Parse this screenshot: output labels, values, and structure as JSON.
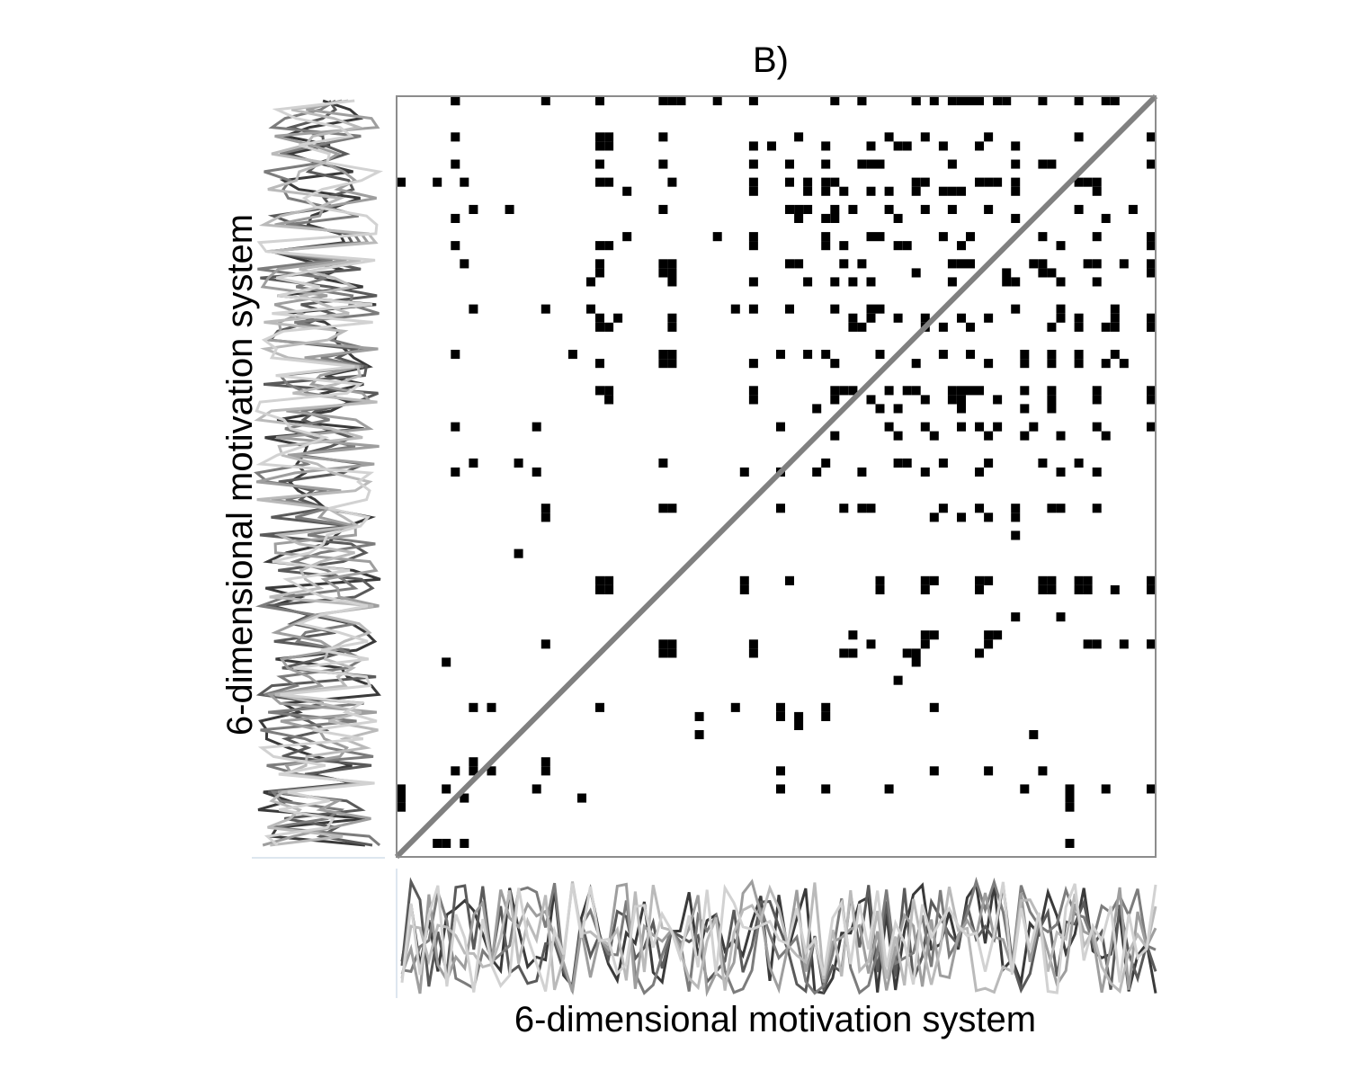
{
  "chart_data": {
    "type": "recurrence_plot",
    "title": "B)",
    "xlabel": "6-dimensional motivation system",
    "ylabel": "6-dimensional motivation system",
    "grid_size": 84,
    "diagonal": "line of identity",
    "recurrence_points": [
      [
        6,
        84
      ],
      [
        16,
        84
      ],
      [
        22,
        84
      ],
      [
        29,
        84
      ],
      [
        35,
        84
      ],
      [
        39,
        84
      ],
      [
        48,
        84
      ],
      [
        51,
        84
      ],
      [
        57,
        84
      ],
      [
        59,
        84
      ],
      [
        62,
        84
      ],
      [
        63,
        84
      ],
      [
        66,
        84
      ],
      [
        67,
        84
      ],
      [
        75,
        84
      ],
      [
        78,
        84
      ],
      [
        79,
        84
      ],
      [
        6,
        83
      ],
      [
        22,
        83
      ],
      [
        30,
        83
      ],
      [
        31,
        83
      ],
      [
        51,
        83
      ],
      [
        57,
        83
      ],
      [
        61,
        83
      ],
      [
        64,
        83
      ],
      [
        71,
        83
      ],
      [
        6,
        79
      ],
      [
        22,
        79
      ],
      [
        23,
        79
      ],
      [
        29,
        79
      ],
      [
        44,
        79
      ],
      [
        54,
        79
      ],
      [
        58,
        79
      ],
      [
        65,
        79
      ],
      [
        75,
        79
      ],
      [
        84,
        79
      ],
      [
        22,
        78
      ],
      [
        23,
        78
      ],
      [
        39,
        78
      ],
      [
        41,
        78
      ],
      [
        47,
        78
      ],
      [
        52,
        78
      ],
      [
        55,
        78
      ],
      [
        56,
        78
      ],
      [
        60,
        78
      ],
      [
        64,
        78
      ],
      [
        68,
        78
      ],
      [
        6,
        76
      ],
      [
        22,
        76
      ],
      [
        29,
        76
      ],
      [
        39,
        76
      ],
      [
        43,
        76
      ],
      [
        47,
        76
      ],
      [
        51,
        76
      ],
      [
        52,
        76
      ],
      [
        53,
        76
      ],
      [
        61,
        76
      ],
      [
        68,
        76
      ],
      [
        71,
        76
      ],
      [
        72,
        76
      ],
      [
        84,
        76
      ],
      [
        0,
        74
      ],
      [
        4,
        74
      ],
      [
        7,
        74
      ],
      [
        22,
        74
      ],
      [
        23,
        74
      ],
      [
        30,
        74
      ],
      [
        39,
        74
      ],
      [
        43,
        74
      ],
      [
        45,
        74
      ],
      [
        47,
        74
      ],
      [
        48,
        74
      ],
      [
        57,
        74
      ],
      [
        58,
        74
      ],
      [
        64,
        74
      ],
      [
        65,
        74
      ],
      [
        66,
        74
      ],
      [
        68,
        74
      ],
      [
        75,
        74
      ],
      [
        76,
        74
      ],
      [
        77,
        74
      ],
      [
        25,
        73
      ],
      [
        39,
        73
      ],
      [
        45,
        73
      ],
      [
        47,
        73
      ],
      [
        49,
        73
      ],
      [
        52,
        73
      ],
      [
        54,
        73
      ],
      [
        57,
        73
      ],
      [
        60,
        73
      ],
      [
        61,
        73
      ],
      [
        62,
        73
      ],
      [
        68,
        73
      ],
      [
        77,
        73
      ],
      [
        8,
        71
      ],
      [
        12,
        71
      ],
      [
        29,
        71
      ],
      [
        43,
        71
      ],
      [
        44,
        71
      ],
      [
        45,
        71
      ],
      [
        48,
        71
      ],
      [
        50,
        71
      ],
      [
        54,
        71
      ],
      [
        58,
        71
      ],
      [
        61,
        71
      ],
      [
        65,
        71
      ],
      [
        75,
        71
      ],
      [
        81,
        71
      ],
      [
        6,
        70
      ],
      [
        44,
        70
      ],
      [
        47,
        70
      ],
      [
        48,
        70
      ],
      [
        55,
        70
      ],
      [
        68,
        70
      ],
      [
        78,
        70
      ],
      [
        25,
        68
      ],
      [
        35,
        68
      ],
      [
        39,
        68
      ],
      [
        47,
        68
      ],
      [
        52,
        68
      ],
      [
        53,
        68
      ],
      [
        60,
        68
      ],
      [
        63,
        68
      ],
      [
        71,
        68
      ],
      [
        77,
        68
      ],
      [
        84,
        68
      ],
      [
        6,
        67
      ],
      [
        22,
        67
      ],
      [
        23,
        67
      ],
      [
        39,
        67
      ],
      [
        47,
        67
      ],
      [
        49,
        67
      ],
      [
        55,
        67
      ],
      [
        56,
        67
      ],
      [
        62,
        67
      ],
      [
        73,
        67
      ],
      [
        84,
        67
      ],
      [
        7,
        65
      ],
      [
        22,
        65
      ],
      [
        29,
        65
      ],
      [
        30,
        65
      ],
      [
        43,
        65
      ],
      [
        44,
        65
      ],
      [
        49,
        65
      ],
      [
        51,
        65
      ],
      [
        61,
        65
      ],
      [
        62,
        65
      ],
      [
        63,
        65
      ],
      [
        70,
        65
      ],
      [
        71,
        65
      ],
      [
        76,
        65
      ],
      [
        77,
        65
      ],
      [
        80,
        65
      ],
      [
        84,
        65
      ],
      [
        22,
        64
      ],
      [
        29,
        64
      ],
      [
        30,
        64
      ],
      [
        57,
        64
      ],
      [
        67,
        64
      ],
      [
        71,
        64
      ],
      [
        72,
        64
      ],
      [
        83,
        64
      ],
      [
        84,
        64
      ],
      [
        21,
        63
      ],
      [
        30,
        63
      ],
      [
        39,
        63
      ],
      [
        45,
        63
      ],
      [
        48,
        63
      ],
      [
        50,
        63
      ],
      [
        52,
        63
      ],
      [
        61,
        63
      ],
      [
        67,
        63
      ],
      [
        68,
        63
      ],
      [
        73,
        63
      ],
      [
        77,
        63
      ],
      [
        8,
        60
      ],
      [
        16,
        60
      ],
      [
        21,
        60
      ],
      [
        37,
        60
      ],
      [
        39,
        60
      ],
      [
        43,
        60
      ],
      [
        48,
        60
      ],
      [
        52,
        60
      ],
      [
        53,
        60
      ],
      [
        68,
        60
      ],
      [
        73,
        60
      ],
      [
        79,
        60
      ],
      [
        22,
        59
      ],
      [
        24,
        59
      ],
      [
        30,
        59
      ],
      [
        50,
        59
      ],
      [
        52,
        59
      ],
      [
        55,
        59
      ],
      [
        58,
        59
      ],
      [
        62,
        59
      ],
      [
        65,
        59
      ],
      [
        73,
        59
      ],
      [
        75,
        59
      ],
      [
        79,
        59
      ],
      [
        84,
        59
      ],
      [
        22,
        58
      ],
      [
        23,
        58
      ],
      [
        30,
        58
      ],
      [
        50,
        58
      ],
      [
        51,
        58
      ],
      [
        58,
        58
      ],
      [
        60,
        58
      ],
      [
        63,
        58
      ],
      [
        72,
        58
      ],
      [
        75,
        58
      ],
      [
        78,
        58
      ],
      [
        79,
        58
      ],
      [
        83,
        58
      ],
      [
        84,
        58
      ],
      [
        6,
        55
      ],
      [
        19,
        55
      ],
      [
        29,
        55
      ],
      [
        30,
        55
      ],
      [
        42,
        55
      ],
      [
        45,
        55
      ],
      [
        47,
        55
      ],
      [
        53,
        55
      ],
      [
        60,
        55
      ],
      [
        63,
        55
      ],
      [
        69,
        55
      ],
      [
        72,
        55
      ],
      [
        75,
        55
      ],
      [
        79,
        55
      ],
      [
        22,
        54
      ],
      [
        29,
        54
      ],
      [
        30,
        54
      ],
      [
        39,
        54
      ],
      [
        48,
        54
      ],
      [
        57,
        54
      ],
      [
        65,
        54
      ],
      [
        69,
        54
      ],
      [
        72,
        54
      ],
      [
        75,
        54
      ],
      [
        78,
        54
      ],
      [
        80,
        54
      ],
      [
        22,
        51
      ],
      [
        23,
        51
      ],
      [
        39,
        51
      ],
      [
        48,
        51
      ],
      [
        49,
        51
      ],
      [
        50,
        51
      ],
      [
        54,
        51
      ],
      [
        56,
        51
      ],
      [
        57,
        51
      ],
      [
        61,
        51
      ],
      [
        62,
        51
      ],
      [
        63,
        51
      ],
      [
        64,
        51
      ],
      [
        69,
        51
      ],
      [
        72,
        51
      ],
      [
        77,
        51
      ],
      [
        84,
        51
      ],
      [
        23,
        50
      ],
      [
        39,
        50
      ],
      [
        48,
        50
      ],
      [
        52,
        50
      ],
      [
        58,
        50
      ],
      [
        61,
        50
      ],
      [
        62,
        50
      ],
      [
        66,
        50
      ],
      [
        72,
        50
      ],
      [
        77,
        50
      ],
      [
        84,
        50
      ],
      [
        46,
        49
      ],
      [
        53,
        49
      ],
      [
        55,
        49
      ],
      [
        62,
        49
      ],
      [
        69,
        49
      ],
      [
        72,
        49
      ],
      [
        6,
        47
      ],
      [
        15,
        47
      ],
      [
        42,
        47
      ],
      [
        54,
        47
      ],
      [
        58,
        47
      ],
      [
        62,
        47
      ],
      [
        64,
        47
      ],
      [
        66,
        47
      ],
      [
        70,
        47
      ],
      [
        77,
        47
      ],
      [
        83,
        47
      ],
      [
        48,
        46
      ],
      [
        55,
        46
      ],
      [
        59,
        46
      ],
      [
        65,
        46
      ],
      [
        69,
        46
      ],
      [
        73,
        46
      ],
      [
        78,
        46
      ],
      [
        8,
        43
      ],
      [
        13,
        43
      ],
      [
        29,
        43
      ],
      [
        47,
        43
      ],
      [
        55,
        43
      ],
      [
        56,
        43
      ],
      [
        60,
        43
      ],
      [
        65,
        43
      ],
      [
        71,
        43
      ],
      [
        75,
        43
      ],
      [
        6,
        42
      ],
      [
        15,
        42
      ],
      [
        38,
        42
      ],
      [
        42,
        42
      ],
      [
        46,
        42
      ],
      [
        51,
        42
      ],
      [
        58,
        42
      ],
      [
        64,
        42
      ],
      [
        73,
        42
      ],
      [
        77,
        42
      ],
      [
        16,
        38
      ],
      [
        29,
        38
      ],
      [
        30,
        38
      ],
      [
        42,
        38
      ],
      [
        49,
        38
      ],
      [
        51,
        38
      ],
      [
        52,
        38
      ],
      [
        60,
        38
      ],
      [
        64,
        38
      ],
      [
        68,
        38
      ],
      [
        72,
        38
      ],
      [
        73,
        38
      ],
      [
        77,
        38
      ],
      [
        16,
        37
      ],
      [
        59,
        37
      ],
      [
        62,
        37
      ],
      [
        65,
        37
      ],
      [
        68,
        37
      ],
      [
        68,
        35
      ],
      [
        13,
        33
      ],
      [
        22,
        30
      ],
      [
        23,
        30
      ],
      [
        38,
        30
      ],
      [
        43,
        30
      ],
      [
        53,
        30
      ],
      [
        58,
        30
      ],
      [
        59,
        30
      ],
      [
        64,
        30
      ],
      [
        65,
        30
      ],
      [
        71,
        30
      ],
      [
        72,
        30
      ],
      [
        75,
        30
      ],
      [
        76,
        30
      ],
      [
        84,
        30
      ],
      [
        22,
        29
      ],
      [
        23,
        29
      ],
      [
        38,
        29
      ],
      [
        53,
        29
      ],
      [
        58,
        29
      ],
      [
        64,
        29
      ],
      [
        71,
        29
      ],
      [
        72,
        29
      ],
      [
        75,
        29
      ],
      [
        76,
        29
      ],
      [
        79,
        29
      ],
      [
        84,
        29
      ],
      [
        68,
        26
      ],
      [
        73,
        26
      ],
      [
        50,
        24
      ],
      [
        58,
        24
      ],
      [
        59,
        24
      ],
      [
        65,
        24
      ],
      [
        66,
        24
      ],
      [
        16,
        23
      ],
      [
        29,
        23
      ],
      [
        30,
        23
      ],
      [
        39,
        23
      ],
      [
        52,
        23
      ],
      [
        58,
        23
      ],
      [
        65,
        23
      ],
      [
        76,
        23
      ],
      [
        77,
        23
      ],
      [
        80,
        23
      ],
      [
        83,
        23
      ],
      [
        84,
        23
      ],
      [
        29,
        22
      ],
      [
        30,
        22
      ],
      [
        39,
        22
      ],
      [
        49,
        22
      ],
      [
        50,
        22
      ],
      [
        56,
        22
      ],
      [
        57,
        22
      ],
      [
        64,
        22
      ],
      [
        5,
        21
      ],
      [
        57,
        21
      ],
      [
        55,
        19
      ],
      [
        8,
        16
      ],
      [
        10,
        16
      ],
      [
        22,
        16
      ],
      [
        37,
        16
      ],
      [
        42,
        16
      ],
      [
        47,
        16
      ],
      [
        59,
        16
      ],
      [
        33,
        15
      ],
      [
        42,
        15
      ],
      [
        44,
        15
      ],
      [
        47,
        15
      ],
      [
        44,
        14
      ],
      [
        33,
        13
      ],
      [
        70,
        13
      ],
      [
        8,
        10
      ],
      [
        16,
        10
      ],
      [
        6,
        9
      ],
      [
        8,
        9
      ],
      [
        10,
        9
      ],
      [
        16,
        9
      ],
      [
        42,
        9
      ],
      [
        59,
        9
      ],
      [
        65,
        9
      ],
      [
        71,
        9
      ],
      [
        0,
        7
      ],
      [
        5,
        7
      ],
      [
        15,
        7
      ],
      [
        42,
        7
      ],
      [
        47,
        7
      ],
      [
        54,
        7
      ],
      [
        69,
        7
      ],
      [
        74,
        7
      ],
      [
        78,
        7
      ],
      [
        83,
        7
      ],
      [
        0,
        6
      ],
      [
        7,
        6
      ],
      [
        20,
        6
      ],
      [
        74,
        6
      ],
      [
        0,
        5
      ],
      [
        74,
        5
      ],
      [
        4,
        1
      ],
      [
        5,
        1
      ],
      [
        7,
        1
      ],
      [
        74,
        1
      ]
    ],
    "series": [
      {
        "color": "#3a3a3a"
      },
      {
        "color": "#5a5a5a"
      },
      {
        "color": "#7c7c7c"
      },
      {
        "color": "#9e9e9e"
      },
      {
        "color": "#bababa"
      },
      {
        "color": "#d2d2d2"
      }
    ],
    "colors": {
      "points": "#000000",
      "diagonal": "#808080",
      "frame": "#8c8c8c"
    }
  }
}
